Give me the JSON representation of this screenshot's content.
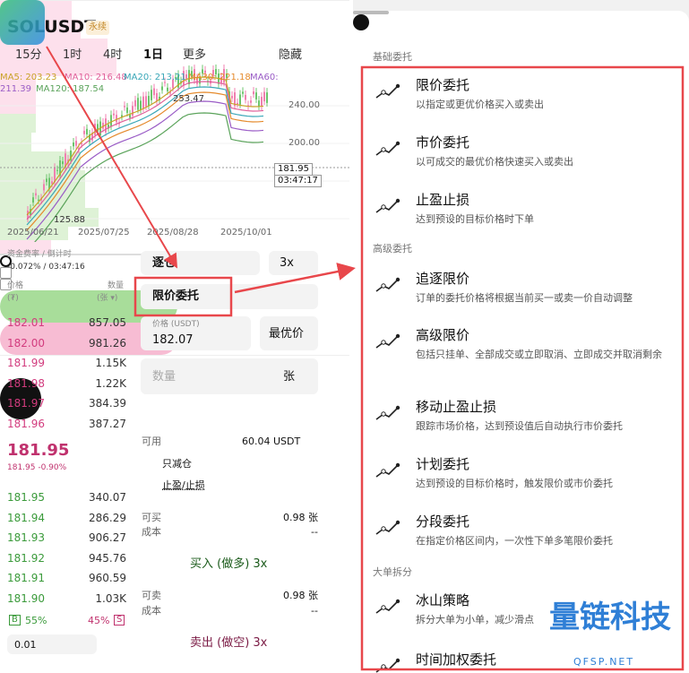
{
  "header": {
    "symbol": "SOLUSDT",
    "tag": "永续"
  },
  "timeframes": [
    "15分",
    "1时",
    "4时",
    "1日",
    "更多",
    "隐藏"
  ],
  "ma_labels": [
    {
      "text": "MA5: 203.23",
      "color": "#c9a227"
    },
    {
      "text": "MA10: 216.48",
      "color": "#e0609a"
    },
    {
      "text": "MA20: 213.21",
      "color": "#3aa7b8"
    },
    {
      "text": "MA30: 221.18",
      "color": "#e58a2c"
    },
    {
      "text": "MA60:",
      "color": "#9a5cc6"
    },
    {
      "text": "211.39",
      "color": "#9a5cc6"
    },
    {
      "text": "MA120: 187.54",
      "color": "#5aa35a"
    }
  ],
  "chart": {
    "high": "253.47",
    "low": "125.88",
    "price_ticks": [
      "240.00",
      "200.00"
    ],
    "last": "181.95",
    "countdown": "03:47:17",
    "dates": [
      "2025/06/21",
      "2025/07/25",
      "2025/08/28",
      "2025/10/01"
    ]
  },
  "funding": {
    "label": "资金费率 / 倒计时",
    "value": "-0.072% / 03:47:16"
  },
  "orderbook": {
    "price_header": "价格",
    "price_unit": "(₮)",
    "qty_header": "数量",
    "qty_unit": "(张 ▾)",
    "asks": [
      [
        "182.01",
        "857.05"
      ],
      [
        "182.00",
        "981.26"
      ],
      [
        "181.99",
        "1.15K"
      ],
      [
        "181.98",
        "1.22K"
      ],
      [
        "181.97",
        "384.39"
      ],
      [
        "181.96",
        "387.27"
      ]
    ],
    "last": "181.95",
    "last_sub": "181.95  -0.90%",
    "bids": [
      [
        "181.95",
        "340.07"
      ],
      [
        "181.94",
        "286.29"
      ],
      [
        "181.93",
        "906.27"
      ],
      [
        "181.92",
        "945.76"
      ],
      [
        "181.91",
        "960.59"
      ],
      [
        "181.90",
        "1.03K"
      ]
    ],
    "buy_badge": "B",
    "buy_ratio": "55%",
    "sell_ratio": "45%",
    "sell_badge": "S",
    "precision": "0.01"
  },
  "order_form": {
    "margin_mode": "逐仓",
    "leverage": "3x",
    "order_type": "限价委托",
    "price_label": "价格 (USDT)",
    "price": "182.07",
    "best_price": "最优价",
    "qty_placeholder": "数量",
    "qty_unit": "张",
    "available_label": "可用",
    "available": "60.04 USDT",
    "reduce_only": "只减仓",
    "tp_sl": "止盈/止损",
    "can_buy": "可买",
    "can_buy_value": "0.98 张",
    "cost": "成本",
    "cost_value": "--",
    "buy_button": "买入 (做多) 3x",
    "can_sell": "可卖",
    "can_sell_value": "0.98 张",
    "cost2": "成本",
    "cost2_value": "--",
    "sell_button": "卖出 (做空) 3x"
  },
  "sheet": {
    "sections": [
      {
        "title": "基础委托",
        "items": [
          {
            "title": "限价委托",
            "desc": "以指定或更优价格买入或卖出"
          },
          {
            "title": "市价委托",
            "desc": "以可成交的最优价格快速买入或卖出"
          },
          {
            "title": "止盈止损",
            "desc": "达到预设的目标价格时下单"
          }
        ]
      },
      {
        "title": "高级委托",
        "items": [
          {
            "title": "追逐限价",
            "desc": "订单的委托价格将根据当前买一或卖一价自动调整"
          },
          {
            "title": "高级限价",
            "desc": "包括只挂单、全部成交或立即取消、立即成交并取消剩余"
          },
          {
            "title": "移动止盈止损",
            "desc": "跟踪市场价格，达到预设值后自动执行市价委托"
          },
          {
            "title": "计划委托",
            "desc": "达到预设的目标价格时，触发限价或市价委托"
          },
          {
            "title": "分段委托",
            "desc": "在指定价格区间内，一次性下单多笔限价委托"
          }
        ]
      },
      {
        "title": "大单拆分",
        "items": [
          {
            "title": "冰山策略",
            "desc": "拆分大单为小单，减少滑点"
          },
          {
            "title": "时间加权委托"
          }
        ]
      }
    ]
  },
  "watermark": {
    "name": "量链科技",
    "domain": "QFSP.NET"
  }
}
